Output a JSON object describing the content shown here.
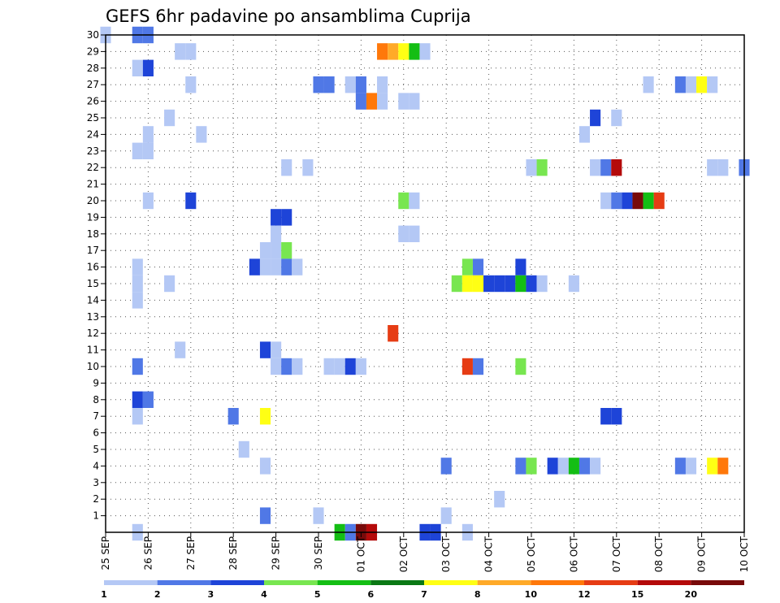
{
  "chart_data": {
    "type": "heatmap",
    "title": "GEFS 6hr padavine po ansamblima Cuprija",
    "xlabel": "",
    "ylabel": "",
    "x_tick_labels": [
      "25 SEP",
      "26 SEP",
      "27 SEP",
      "28 SEP",
      "29 SEP",
      "30 SEP",
      "01 OCT",
      "02 OCT",
      "03 OCT",
      "04 OCT",
      "05 OCT",
      "06 OCT",
      "07 OCT",
      "08 OCT",
      "09 OCT",
      "10 OCT"
    ],
    "y_tick_labels": [
      "1",
      "2",
      "3",
      "4",
      "5",
      "6",
      "7",
      "8",
      "9",
      "10",
      "11",
      "12",
      "13",
      "14",
      "15",
      "16",
      "17",
      "18",
      "19",
      "20",
      "21",
      "22",
      "23",
      "24",
      "25",
      "26",
      "27",
      "28",
      "29",
      "30"
    ],
    "x_range_steps": [
      0,
      60
    ],
    "y_range": [
      0,
      30
    ],
    "x_step_note": "6-hour steps from 25 SEP 00Z",
    "grid": true,
    "legend": {
      "placement": "bottom",
      "labels": [
        "1",
        "2",
        "3",
        "4",
        "5",
        "6",
        "7",
        "8",
        "10",
        "12",
        "15",
        "20"
      ],
      "colors": [
        "#b4c8f5",
        "#5078e6",
        "#1e44d8",
        "#78e650",
        "#14be14",
        "#0a7814",
        "#ffff14",
        "#ffaa28",
        "#ff780a",
        "#e63c14",
        "#b40a0a",
        "#780a0a"
      ]
    },
    "cell_columns": [
      "step",
      "member",
      "level"
    ],
    "cells": [
      [
        0,
        30,
        1
      ],
      [
        3,
        30,
        2
      ],
      [
        4,
        30,
        2
      ],
      [
        26,
        29,
        9
      ],
      [
        27,
        29,
        8
      ],
      [
        28,
        29,
        7
      ],
      [
        29,
        29,
        5
      ],
      [
        30,
        29,
        1
      ],
      [
        7,
        29,
        1
      ],
      [
        8,
        29,
        1
      ],
      [
        3,
        28,
        1
      ],
      [
        4,
        28,
        3
      ],
      [
        8,
        27,
        1
      ],
      [
        20,
        27,
        2
      ],
      [
        21,
        27,
        2
      ],
      [
        23,
        27,
        1
      ],
      [
        24,
        27,
        2
      ],
      [
        26,
        27,
        1
      ],
      [
        51,
        27,
        1
      ],
      [
        54,
        27,
        2
      ],
      [
        55,
        27,
        1
      ],
      [
        56,
        27,
        7
      ],
      [
        57,
        27,
        1
      ],
      [
        24,
        26,
        2
      ],
      [
        25,
        26,
        9
      ],
      [
        26,
        26,
        1
      ],
      [
        28,
        26,
        1
      ],
      [
        29,
        26,
        1
      ],
      [
        6,
        25,
        1
      ],
      [
        46,
        25,
        3
      ],
      [
        48,
        25,
        1
      ],
      [
        4,
        24,
        1
      ],
      [
        9,
        24,
        1
      ],
      [
        45,
        24,
        1
      ],
      [
        3,
        23,
        1
      ],
      [
        4,
        23,
        1
      ],
      [
        17,
        22,
        1
      ],
      [
        19,
        22,
        1
      ],
      [
        40,
        22,
        1
      ],
      [
        41,
        22,
        4
      ],
      [
        46,
        22,
        1
      ],
      [
        47,
        22,
        2
      ],
      [
        48,
        22,
        11
      ],
      [
        57,
        22,
        1
      ],
      [
        58,
        22,
        1
      ],
      [
        60,
        22,
        2
      ],
      [
        4,
        20,
        1
      ],
      [
        8,
        20,
        3
      ],
      [
        28,
        20,
        4
      ],
      [
        29,
        20,
        1
      ],
      [
        47,
        20,
        1
      ],
      [
        48,
        20,
        2
      ],
      [
        49,
        20,
        3
      ],
      [
        50,
        20,
        12
      ],
      [
        51,
        20,
        5
      ],
      [
        52,
        20,
        10
      ],
      [
        16,
        19,
        3
      ],
      [
        17,
        19,
        3
      ],
      [
        16,
        18,
        1
      ],
      [
        28,
        18,
        1
      ],
      [
        29,
        18,
        1
      ],
      [
        15,
        17,
        1
      ],
      [
        16,
        17,
        1
      ],
      [
        17,
        17,
        4
      ],
      [
        3,
        16,
        1
      ],
      [
        14,
        16,
        3
      ],
      [
        15,
        16,
        1
      ],
      [
        16,
        16,
        1
      ],
      [
        17,
        16,
        2
      ],
      [
        18,
        16,
        1
      ],
      [
        34,
        16,
        4
      ],
      [
        35,
        16,
        2
      ],
      [
        39,
        16,
        3
      ],
      [
        3,
        15,
        1
      ],
      [
        6,
        15,
        1
      ],
      [
        33,
        15,
        4
      ],
      [
        34,
        15,
        7
      ],
      [
        35,
        15,
        7
      ],
      [
        36,
        15,
        3
      ],
      [
        37,
        15,
        3
      ],
      [
        38,
        15,
        3
      ],
      [
        39,
        15,
        5
      ],
      [
        40,
        15,
        3
      ],
      [
        41,
        15,
        1
      ],
      [
        44,
        15,
        1
      ],
      [
        3,
        14,
        1
      ],
      [
        27,
        12,
        10
      ],
      [
        7,
        11,
        1
      ],
      [
        15,
        11,
        3
      ],
      [
        16,
        11,
        1
      ],
      [
        3,
        10,
        2
      ],
      [
        16,
        10,
        1
      ],
      [
        17,
        10,
        2
      ],
      [
        18,
        10,
        1
      ],
      [
        21,
        10,
        1
      ],
      [
        22,
        10,
        1
      ],
      [
        23,
        10,
        3
      ],
      [
        24,
        10,
        1
      ],
      [
        34,
        10,
        10
      ],
      [
        35,
        10,
        2
      ],
      [
        39,
        10,
        4
      ],
      [
        3,
        8,
        3
      ],
      [
        4,
        8,
        2
      ],
      [
        3,
        7,
        1
      ],
      [
        12,
        7,
        2
      ],
      [
        15,
        7,
        7
      ],
      [
        47,
        7,
        3
      ],
      [
        48,
        7,
        3
      ],
      [
        13,
        5,
        1
      ],
      [
        15,
        4,
        1
      ],
      [
        32,
        4,
        2
      ],
      [
        39,
        4,
        2
      ],
      [
        40,
        4,
        4
      ],
      [
        42,
        4,
        3
      ],
      [
        43,
        4,
        1
      ],
      [
        44,
        4,
        5
      ],
      [
        45,
        4,
        2
      ],
      [
        46,
        4,
        1
      ],
      [
        54,
        4,
        2
      ],
      [
        55,
        4,
        1
      ],
      [
        57,
        4,
        7
      ],
      [
        58,
        4,
        9
      ],
      [
        37,
        2,
        1
      ],
      [
        15,
        1,
        2
      ],
      [
        20,
        1,
        1
      ],
      [
        32,
        1,
        1
      ],
      [
        3,
        0,
        1
      ],
      [
        22,
        0,
        5
      ],
      [
        23,
        0,
        2
      ],
      [
        24,
        0,
        12
      ],
      [
        25,
        0,
        11
      ],
      [
        30,
        0,
        3
      ],
      [
        31,
        0,
        3
      ],
      [
        34,
        0,
        1
      ]
    ]
  }
}
